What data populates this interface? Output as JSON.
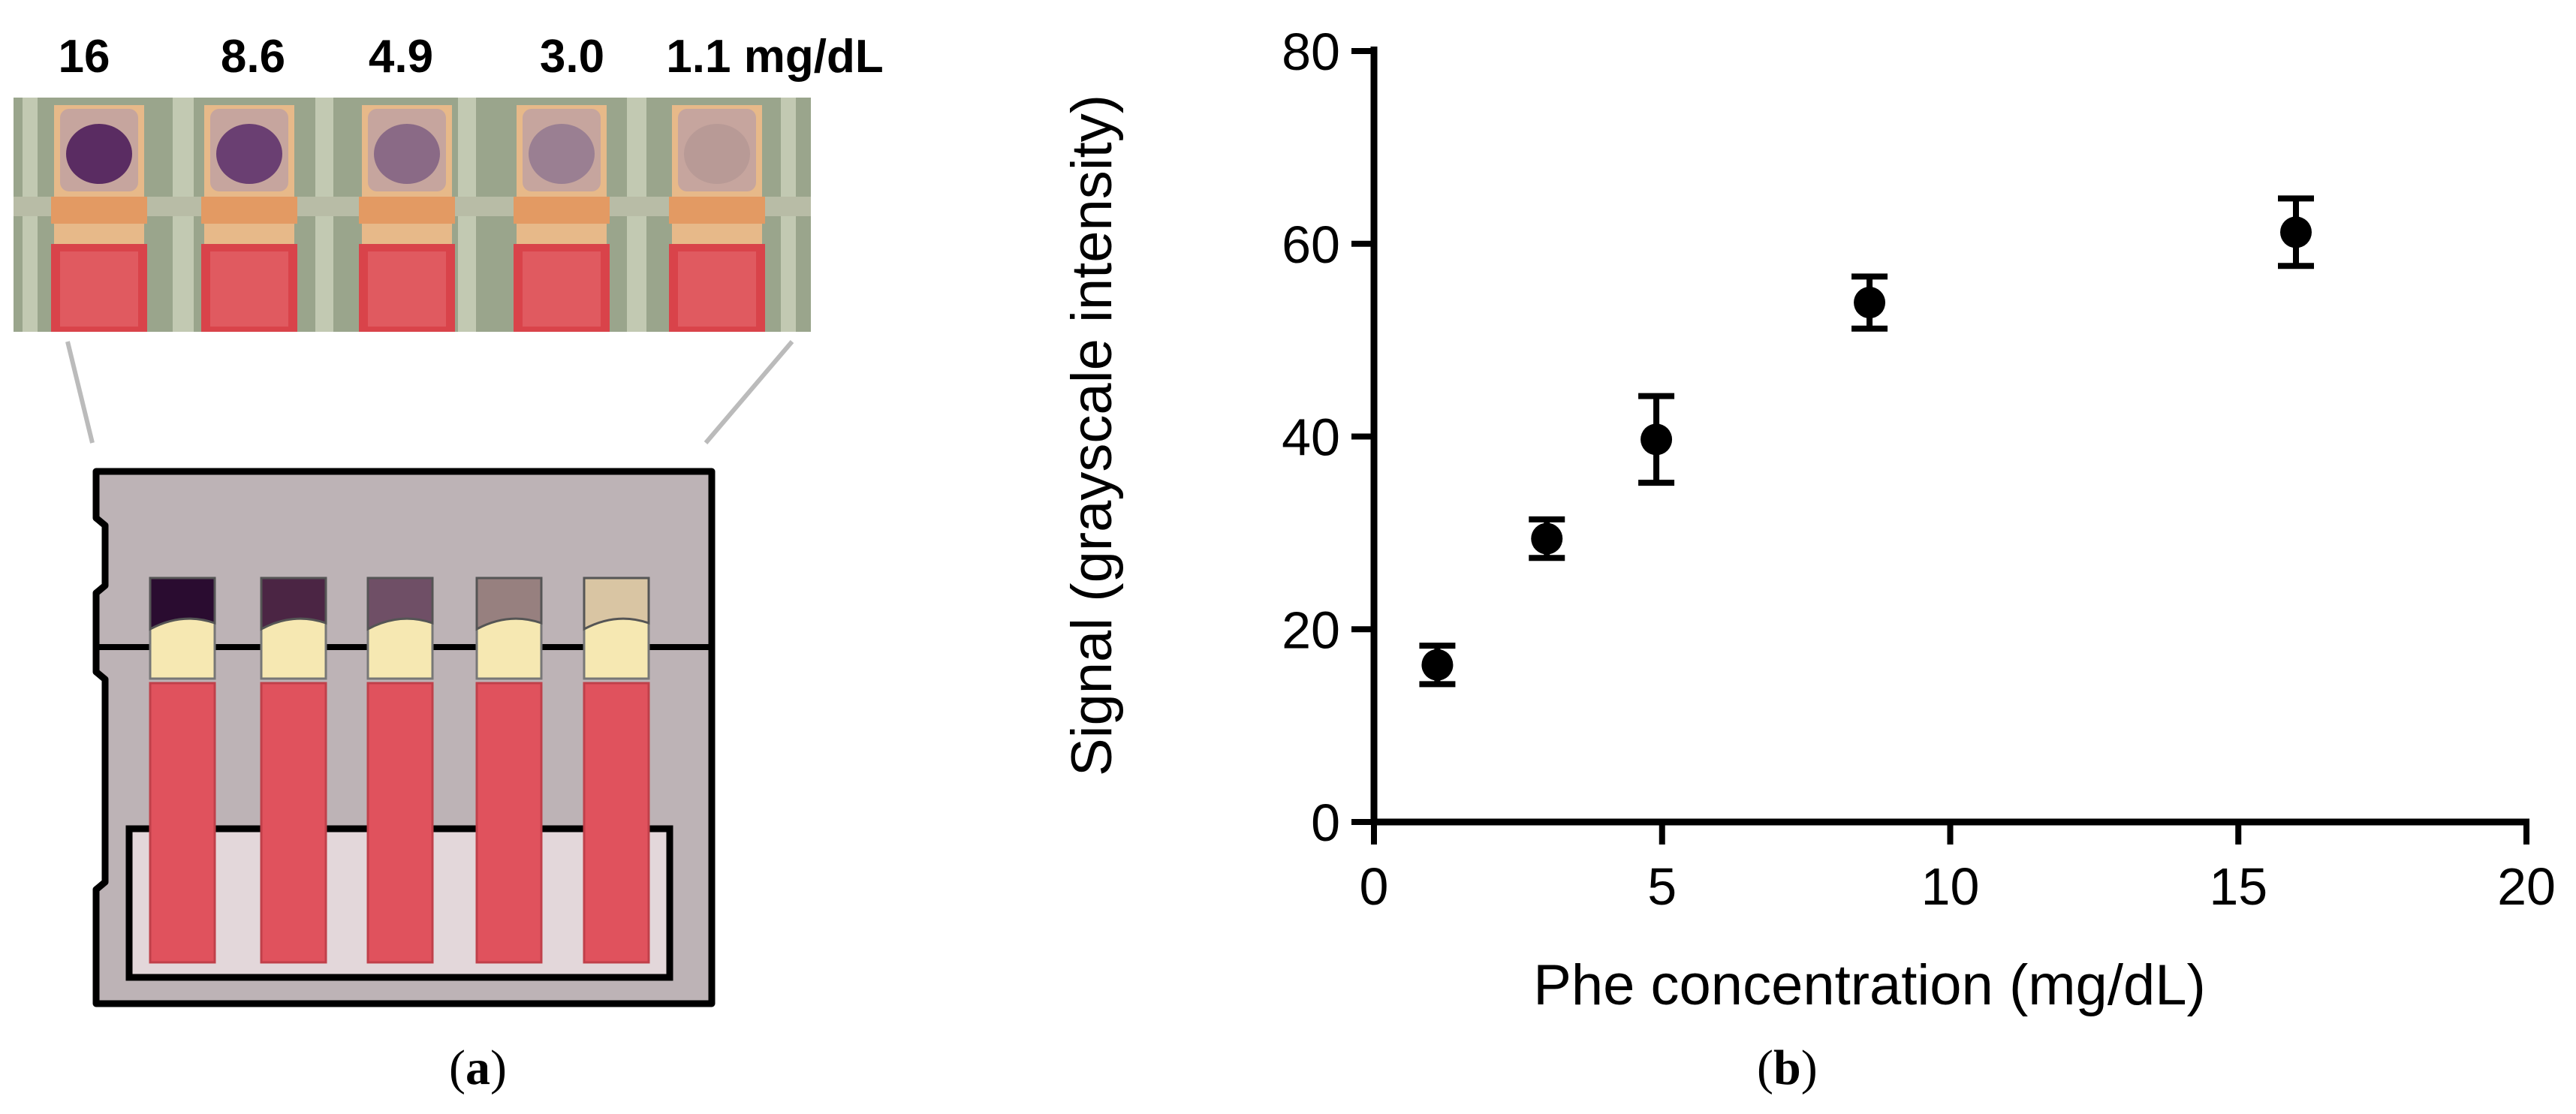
{
  "panel_a": {
    "caption_open": "(",
    "caption_letter": "a",
    "caption_close": ")",
    "concentration_labels": [
      "16",
      "8.6",
      "4.9",
      "3.0",
      "1.1 mg/dL"
    ],
    "colors": {
      "test_pad_dark": "#2a0c30",
      "test_pad_light": "#d9c5a3",
      "blood_pad": "#e0525d",
      "card_background": "#bdb3b6",
      "pad_yellow": "#f6e8b2"
    }
  },
  "panel_b": {
    "caption_open": "(",
    "caption_letter": "b",
    "caption_close": ")"
  },
  "chart_data": {
    "type": "scatter",
    "title": "",
    "xlabel": "Phe concentration (mg/dL)",
    "ylabel": "Signal (grayscale intensity)",
    "xlim": [
      0,
      20
    ],
    "ylim": [
      0,
      80
    ],
    "xticks": [
      0,
      5,
      10,
      15,
      20
    ],
    "yticks": [
      0,
      20,
      40,
      60,
      80
    ],
    "grid": false,
    "legend": false,
    "marker_color": "#000000",
    "points": [
      {
        "x": 1.1,
        "y": 16.3,
        "err": 2.0
      },
      {
        "x": 3.0,
        "y": 29.4,
        "err": 2.0
      },
      {
        "x": 4.9,
        "y": 39.7,
        "err": 4.5
      },
      {
        "x": 8.6,
        "y": 53.9,
        "err": 2.7
      },
      {
        "x": 16.0,
        "y": 61.2,
        "err": 3.5
      }
    ]
  }
}
